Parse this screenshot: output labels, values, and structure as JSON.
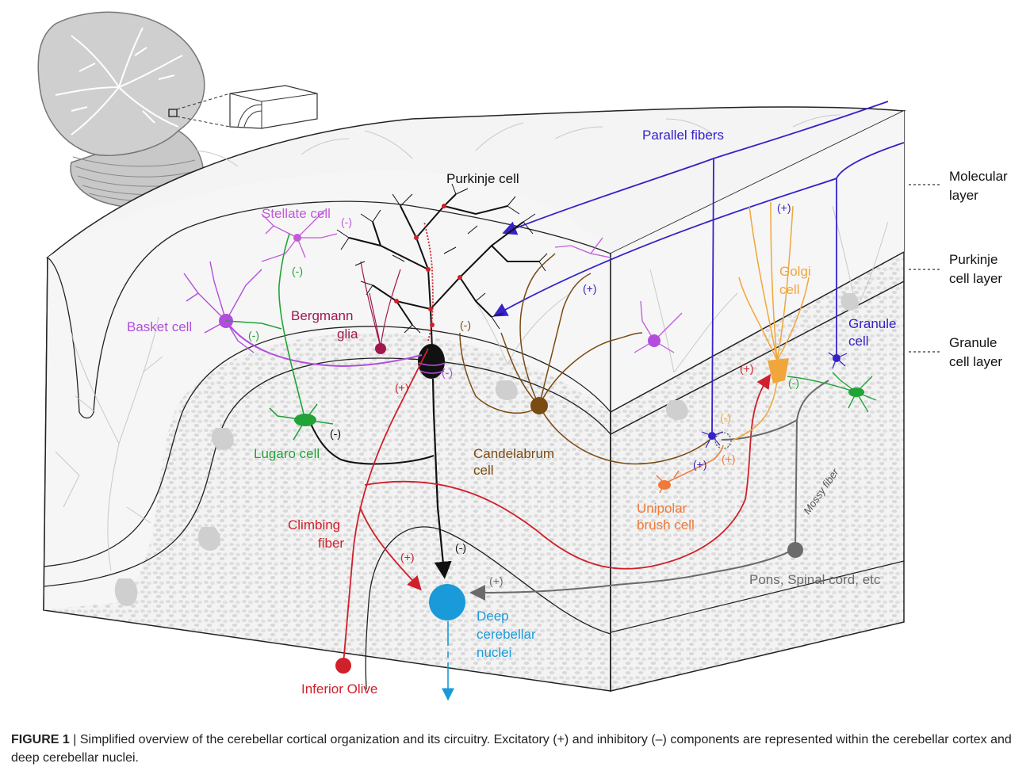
{
  "colors": {
    "purkinje": "#111111",
    "climbing": "#d0202a",
    "parallel": "#3522c8",
    "basket": "#b24ddc",
    "stellate": "#c15ad8",
    "lugaro": "#22a337",
    "candelabrum": "#7a4b12",
    "golgi": "#f0a63a",
    "granule": "#3522c8",
    "unipolar": "#f07a3a",
    "mossy": "#6b6b6b",
    "deep_nuclei": "#1a9ad9",
    "bergmann": "#a0184e"
  },
  "labels": {
    "parallel_fibers": "Parallel fibers",
    "purkinje_cell": "Purkinje cell",
    "stellate_cell": "Stellate cell",
    "basket_cell": "Basket cell",
    "bergmann_glia_1": "Bergmann",
    "bergmann_glia_2": "glia",
    "lugaro_cell": "Lugaro cell",
    "candelabrum_1": "Candelabrum",
    "candelabrum_2": "cell",
    "golgi_1": "Golgi",
    "golgi_2": "cell",
    "granule_1": "Granule",
    "granule_2": "cell",
    "unipolar_1": "Unipolar",
    "unipolar_2": "brush cell",
    "climbing_1": "Climbing",
    "climbing_2": "fiber",
    "deep_1": "Deep",
    "deep_2": "cerebellar",
    "deep_3": "nuclei",
    "inferior_olive": "Inferior Olive",
    "pons": "Pons, Spinal cord, etc",
    "mossy_fiber": "Mossy fiber"
  },
  "layers": {
    "molecular_1": "Molecular",
    "molecular_2": "layer",
    "purkinje_1": "Purkinje",
    "purkinje_2": "cell layer",
    "granule_1": "Granule",
    "granule_2": "cell layer"
  },
  "signs": {
    "plus": "(+)",
    "minus": "(-)"
  },
  "caption": {
    "label": "FIGURE 1",
    "separator": "|",
    "text": "Simplified overview of the cerebellar cortical organization and its circuitry. Excitatory (+) and inhibitory (–) components are represented within the cerebellar cortex and deep cerebellar nuclei."
  }
}
